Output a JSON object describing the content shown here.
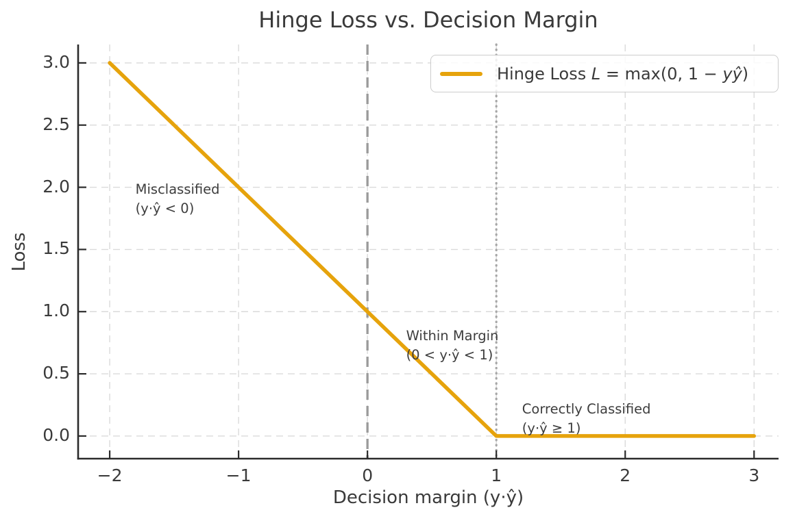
{
  "chart_data": {
    "type": "line",
    "title": "Hinge Loss vs. Decision Margin",
    "xlabel": "Decision margin (y·ŷ)",
    "ylabel": "Loss",
    "xlim": [
      -2.245,
      3.19
    ],
    "ylim": [
      -0.182,
      3.148
    ],
    "grid": true,
    "xticks": {
      "values": [
        -2,
        -1,
        0,
        1,
        2,
        3
      ],
      "labels": [
        "−2",
        "−1",
        "0",
        "1",
        "2",
        "3"
      ]
    },
    "yticks": {
      "values": [
        0,
        0.5,
        1,
        1.5,
        2,
        2.5,
        3
      ],
      "labels": [
        "0.0",
        "0.5",
        "1.0",
        "1.5",
        "2.0",
        "2.5",
        "3.0"
      ]
    },
    "series": [
      {
        "name": "Hinge Loss L = max(0, 1 − yŷ)",
        "x": [
          -2,
          1,
          3
        ],
        "y": [
          3,
          0,
          0
        ],
        "color": "#e6a30c",
        "width": 5.5
      }
    ],
    "reference_lines": [
      {
        "x": 0,
        "style": "dashed",
        "color": "#9a9a9a",
        "width": 3.3
      },
      {
        "x": 1,
        "style": "dotted",
        "color": "#a6a6a6",
        "width": 3.2
      }
    ],
    "annotations": [
      {
        "name": "misclassified",
        "x": -1.8,
        "y": 2.06,
        "lines": [
          "Misclassified",
          "(y·ŷ < 0)"
        ]
      },
      {
        "name": "within-margin",
        "x": 0.3,
        "y": 0.88,
        "lines": [
          "Within Margin",
          "(0 < y·ŷ < 1)"
        ]
      },
      {
        "name": "correctly-classified",
        "x": 1.2,
        "y": 0.29,
        "lines": [
          "Correctly Classified",
          "(y·ŷ ≥ 1)"
        ]
      }
    ],
    "legend": {
      "position": "upper right",
      "parts": [
        "Hinge Loss ",
        "L",
        " = max(0, 1 − ",
        "yŷ",
        ")"
      ]
    },
    "colors": {
      "line": "#e6a30c",
      "grid": "#dadada",
      "spine": "#2b2b2b",
      "text": "#3a3a3a",
      "dashed_reference": "#9a9a9a",
      "dotted_reference": "#a6a6a6",
      "background": "#ffffff"
    }
  }
}
